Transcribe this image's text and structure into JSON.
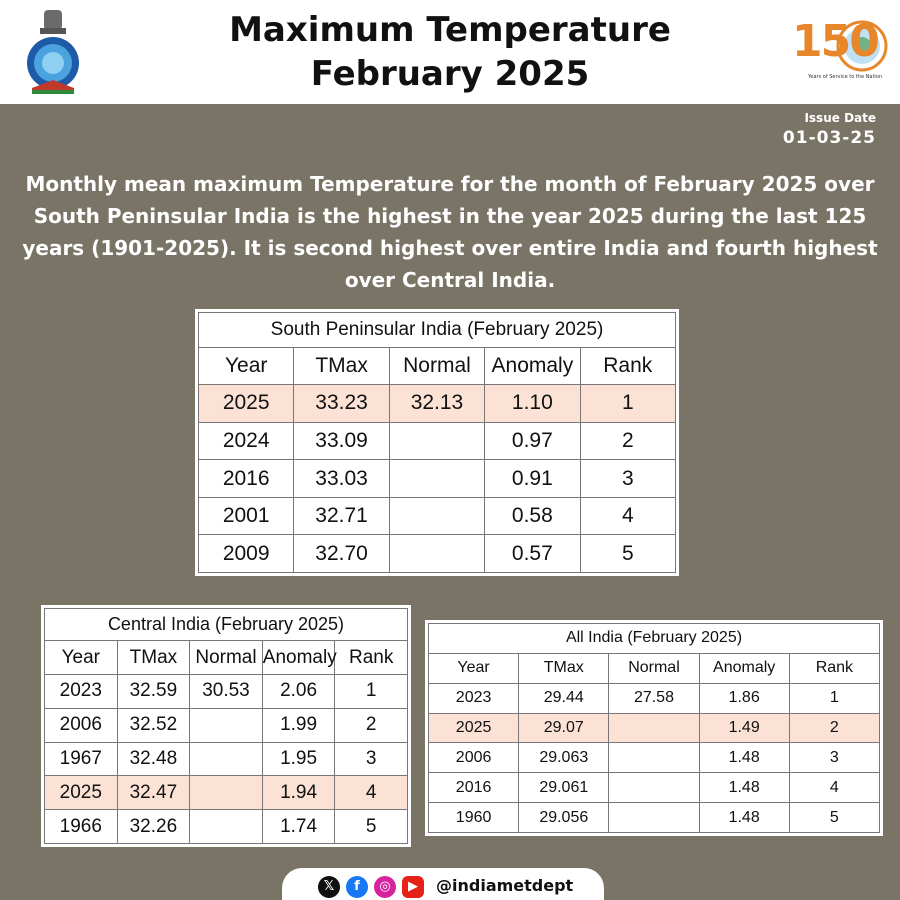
{
  "header": {
    "title_line1": "Maximum Temperature",
    "title_line2": "February 2025"
  },
  "issue": {
    "label": "Issue Date",
    "date": "01-03-25"
  },
  "summary": "Monthly mean maximum Temperature for the month of February 2025 over South Peninsular India is the highest in the year 2025 during the last 125 years (1901-2025). It is second highest over entire India and fourth highest over Central India.",
  "logo150": {
    "number": "150",
    "subtitle": "Years of Service to the Nation"
  },
  "south_peninsular": {
    "caption": "South Peninsular India (February 2025)",
    "headers": [
      "Year",
      "TMax",
      "Normal",
      "Anomaly",
      "Rank"
    ],
    "rows": [
      [
        "2025",
        "33.23",
        "32.13",
        "1.10",
        "1"
      ],
      [
        "2024",
        "33.09",
        "",
        "0.97",
        "2"
      ],
      [
        "2016",
        "33.03",
        "",
        "0.91",
        "3"
      ],
      [
        "2001",
        "32.71",
        "",
        "0.58",
        "4"
      ],
      [
        "2009",
        "32.70",
        "",
        "0.57",
        "5"
      ]
    ],
    "highlight_row": 0
  },
  "central_india": {
    "caption": "Central India (February 2025)",
    "headers": [
      "Year",
      "TMax",
      "Normal",
      "Anomaly",
      "Rank"
    ],
    "rows": [
      [
        "2023",
        "32.59",
        "30.53",
        "2.06",
        "1"
      ],
      [
        "2006",
        "32.52",
        "",
        "1.99",
        "2"
      ],
      [
        "1967",
        "32.48",
        "",
        "1.95",
        "3"
      ],
      [
        "2025",
        "32.47",
        "",
        "1.94",
        "4"
      ],
      [
        "1966",
        "32.26",
        "",
        "1.74",
        "5"
      ]
    ],
    "highlight_row": 3
  },
  "all_india": {
    "caption": "All India (February 2025)",
    "headers": [
      "Year",
      "TMax",
      "Normal",
      "Anomaly",
      "Rank"
    ],
    "rows": [
      [
        "2023",
        "29.44",
        "27.58",
        "1.86",
        "1"
      ],
      [
        "2025",
        "29.07",
        "",
        "1.49",
        "2"
      ],
      [
        "2006",
        "29.063",
        "",
        "1.48",
        "3"
      ],
      [
        "2016",
        "29.061",
        "",
        "1.48",
        "4"
      ],
      [
        "1960",
        "29.056",
        "",
        "1.48",
        "5"
      ]
    ],
    "highlight_row": 1
  },
  "social": {
    "handle": "@indiametdept",
    "icons": [
      "x-icon",
      "facebook-icon",
      "instagram-icon",
      "youtube-icon"
    ]
  },
  "colors": {
    "background": "#7a7466",
    "highlight": "#fbe2d5",
    "logo_orange": "#e8872a",
    "logo_green": "#3f8f3a"
  }
}
